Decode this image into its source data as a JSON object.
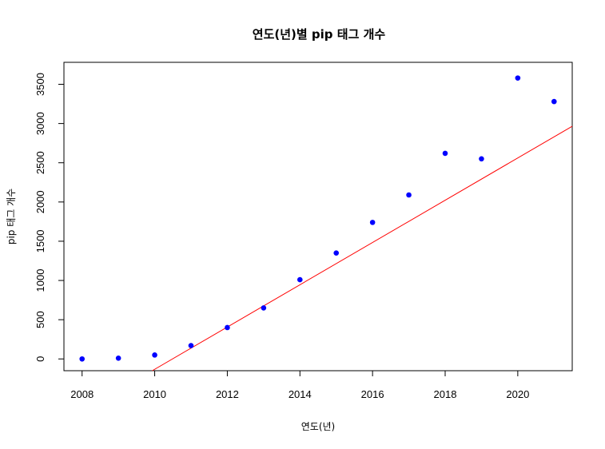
{
  "chart_data": {
    "type": "scatter",
    "title": "연도(년)별 pip 태그 개수",
    "xlabel": "연도(년)",
    "ylabel": "pip 태그 개수",
    "xlim": [
      2007.5,
      2021.5
    ],
    "ylim": [
      -150,
      3780
    ],
    "x_ticks": [
      2008,
      2010,
      2012,
      2014,
      2016,
      2018,
      2020
    ],
    "y_ticks": [
      0,
      500,
      1000,
      1500,
      2000,
      2500,
      3000,
      3500
    ],
    "x_tick_labels": [
      "2008",
      "2010",
      "2012",
      "2014",
      "2016",
      "2018",
      "2020"
    ],
    "y_tick_labels": [
      "0",
      "500",
      "1000",
      "1500",
      "2000",
      "2500",
      "3000",
      "3500"
    ],
    "grid": false,
    "series": [
      {
        "type": "scatter",
        "color": "#0000ff",
        "x": [
          2008,
          2009,
          2010,
          2011,
          2012,
          2013,
          2014,
          2015,
          2016,
          2017,
          2018,
          2019,
          2020,
          2021
        ],
        "y": [
          0,
          10,
          50,
          170,
          400,
          650,
          1010,
          1350,
          1740,
          2090,
          2620,
          2550,
          3580,
          3280
        ]
      },
      {
        "type": "line",
        "color": "#ff0000",
        "intercept": -541425,
        "slope": 269.3
      }
    ]
  }
}
